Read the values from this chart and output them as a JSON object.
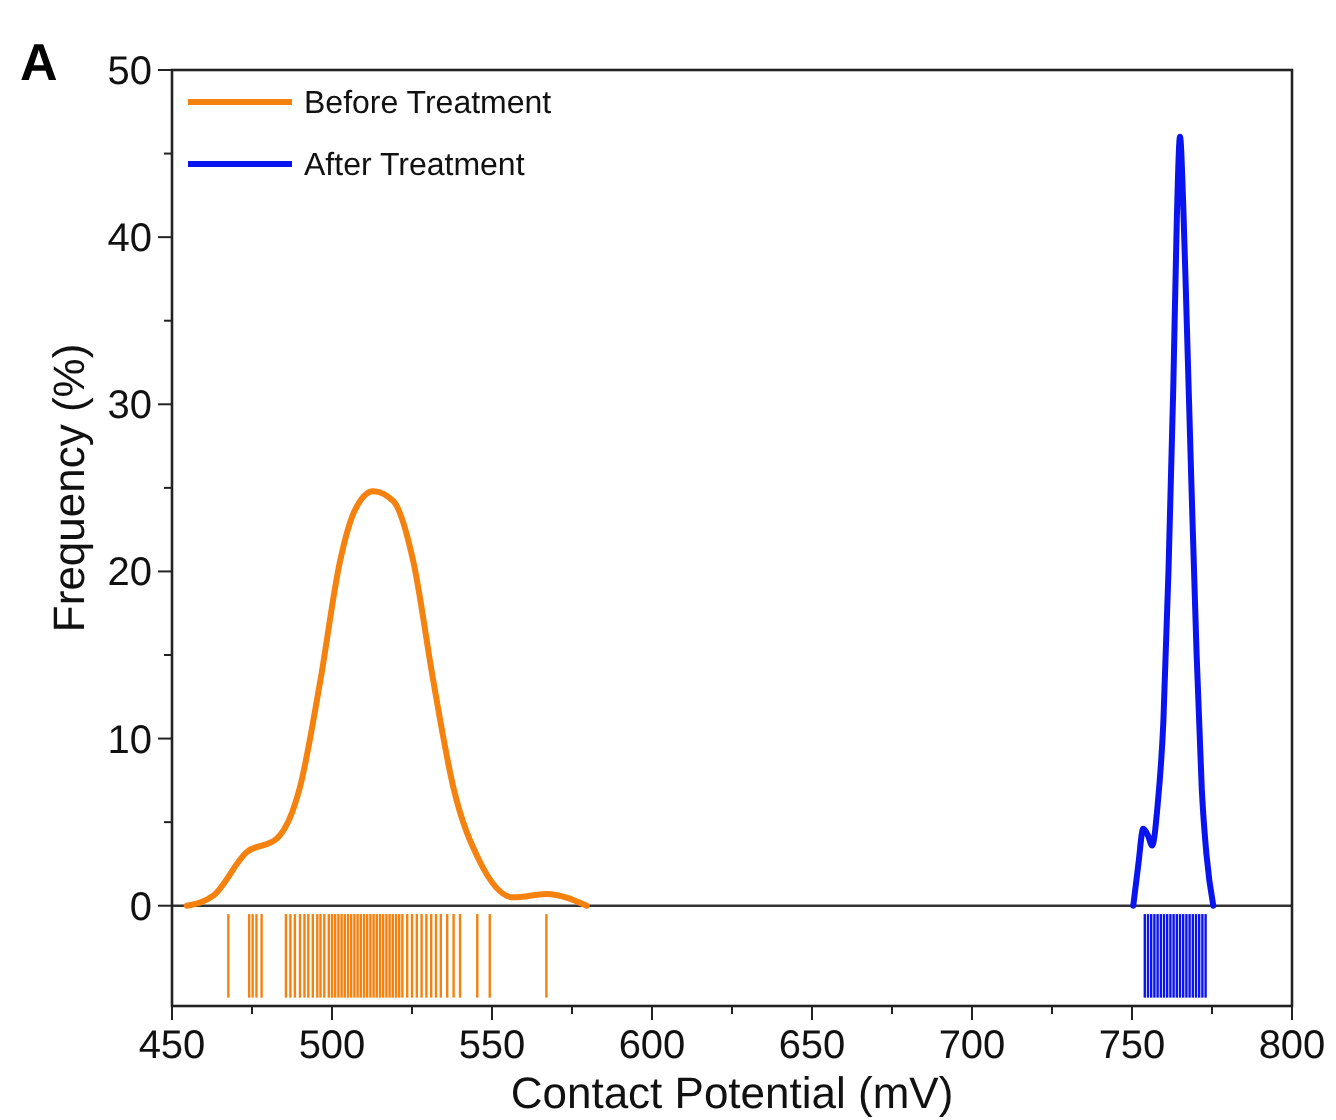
{
  "chart_data": {
    "type": "line",
    "xlabel": "Contact Potential (mV)",
    "ylabel": "Frequency (%)",
    "annotations": [
      "A"
    ],
    "xlim": [
      450,
      800
    ],
    "ylim": [
      -6,
      50
    ],
    "xticks": [
      450,
      {
        "value": 475,
        "label": null
      },
      500,
      {
        "value": 525,
        "label": null
      },
      550,
      {
        "value": 575,
        "label": null
      },
      600,
      {
        "value": 625,
        "label": null
      },
      650,
      {
        "value": 675,
        "label": null
      },
      700,
      {
        "value": 725,
        "label": null
      },
      750,
      {
        "value": 775,
        "label": null
      },
      800
    ],
    "yticks": [
      0,
      {
        "value": 5,
        "label": null
      },
      10,
      {
        "value": 15,
        "label": null
      },
      20,
      {
        "value": 25,
        "label": null
      },
      30,
      {
        "value": 35,
        "label": null
      },
      40,
      {
        "value": 45,
        "label": null
      },
      50
    ],
    "ref_lines": [
      {
        "axis": "y",
        "value": 0,
        "color": "#333333"
      }
    ],
    "legend": "top left",
    "grid": false,
    "series": [
      {
        "name": "Before Treatment",
        "color": "#f5820f",
        "x": [
          454.6,
          462.9,
          473.3,
          482.7,
          490,
          496.3,
          502.5,
          507,
          512.9,
          519.2,
          525.4,
          531.7,
          537.9,
          546.3,
          556.7,
          567.1,
          579.6
        ],
        "values": [
          0,
          0.6,
          3.2,
          4,
          7.1,
          13.4,
          20.6,
          23.6,
          24.8,
          24.2,
          20.6,
          13.4,
          7.1,
          2.6,
          0.5,
          0.7,
          0
        ]
      },
      {
        "name": "After Treatment",
        "color": "#0a14f0",
        "x": [
          750.4,
          752,
          753.5,
          755,
          756.3,
          758,
          759.8,
          761.4,
          762.9,
          764,
          765,
          766,
          767.1,
          768.6,
          770.2,
          771.8,
          773.3,
          775.4
        ],
        "values": [
          0,
          2.5,
          4.6,
          4.2,
          3.6,
          6,
          11,
          20,
          31,
          41,
          46,
          42,
          35,
          25,
          15,
          7,
          3,
          0
        ]
      },
      {
        "type": "bar",
        "color": "#f5820f",
        "x": [
          467.6,
          474.1,
          475.2,
          476.4,
          478,
          485.6,
          487,
          488.4,
          490,
          491.4,
          492.6,
          494,
          495.4,
          496.4,
          497.6,
          499,
          500,
          501,
          502,
          503,
          504,
          505,
          506,
          507,
          508,
          509,
          510,
          511,
          512,
          513,
          514,
          515,
          516,
          517,
          518,
          519,
          520,
          521,
          522,
          523.5,
          525,
          526.5,
          528,
          529.5,
          531,
          532.5,
          534,
          536,
          538,
          540,
          545.4,
          549.3,
          567
        ],
        "values": [
          5,
          5,
          5,
          5,
          5,
          5,
          5,
          5,
          5,
          5,
          5,
          5,
          5,
          5,
          5,
          5,
          5,
          5,
          5,
          5,
          5,
          5,
          5,
          5,
          5,
          5,
          5,
          5,
          5,
          5,
          5,
          5,
          5,
          5,
          5,
          5,
          5,
          5,
          5,
          5,
          5,
          5,
          5,
          5,
          5,
          5,
          5,
          5,
          5,
          5,
          5,
          5,
          5
        ],
        "base": [
          -5.5,
          -5.5,
          -5.5,
          -5.5,
          -5.5,
          -5.5,
          -5.5,
          -5.5,
          -5.5,
          -5.5,
          -5.5,
          -5.5,
          -5.5,
          -5.5,
          -5.5,
          -5.5,
          -5.5,
          -5.5,
          -5.5,
          -5.5,
          -5.5,
          -5.5,
          -5.5,
          -5.5,
          -5.5,
          -5.5,
          -5.5,
          -5.5,
          -5.5,
          -5.5,
          -5.5,
          -5.5,
          -5.5,
          -5.5,
          -5.5,
          -5.5,
          -5.5,
          -5.5,
          -5.5,
          -5.5,
          -5.5,
          -5.5,
          -5.5,
          -5.5,
          -5.5,
          -5.5,
          -5.5,
          -5.5,
          -5.5,
          -5.5,
          -5.5,
          -5.5,
          -5.5
        ]
      },
      {
        "type": "bar",
        "color": "#0a14f0",
        "x": [
          754,
          755,
          756,
          757,
          758,
          759,
          760,
          761,
          762,
          763,
          764,
          765,
          766,
          767,
          768,
          769,
          770,
          771,
          772,
          773
        ],
        "values": [
          5,
          5,
          5,
          5,
          5,
          5,
          5,
          5,
          5,
          5,
          5,
          5,
          5,
          5,
          5,
          5,
          5,
          5,
          5,
          5
        ],
        "base": [
          -5.5,
          -5.5,
          -5.5,
          -5.5,
          -5.5,
          -5.5,
          -5.5,
          -5.5,
          -5.5,
          -5.5,
          -5.5,
          -5.5,
          -5.5,
          -5.5,
          -5.5,
          -5.5,
          -5.5,
          -5.5,
          -5.5,
          -5.5
        ]
      }
    ]
  }
}
